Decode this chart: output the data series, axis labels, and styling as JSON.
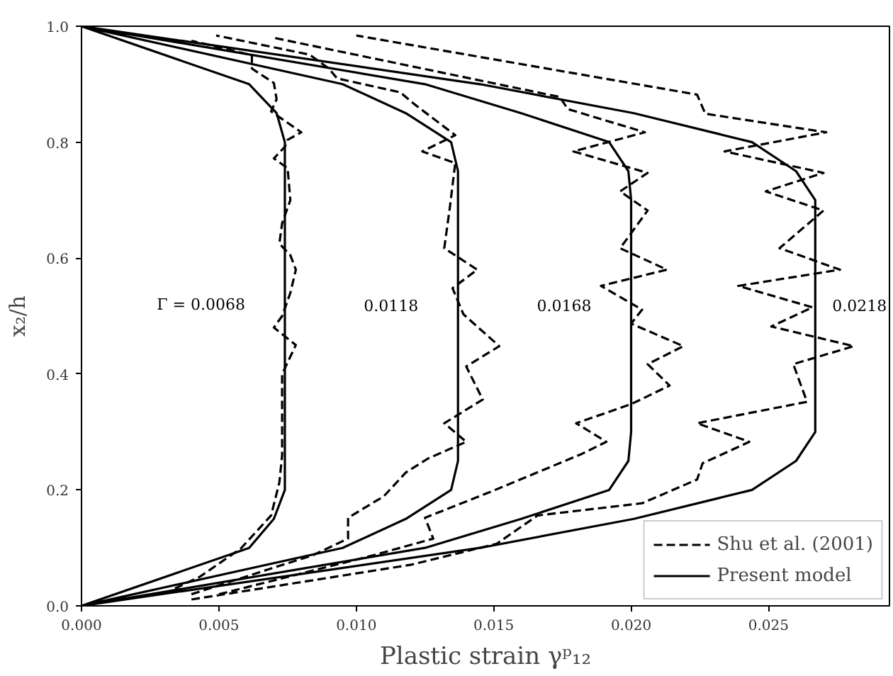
{
  "chart_data": {
    "type": "line",
    "xlabel": "Plastic strain γᵖ₁₂",
    "ylabel": "x₂/h",
    "xlim": [
      0,
      0.0294
    ],
    "ylim": [
      0,
      1.0
    ],
    "xticks": [
      {
        "value": 0,
        "label": "0.000"
      },
      {
        "value": 0.005,
        "label": "0.005"
      },
      {
        "value": 0.01,
        "label": "0.010"
      },
      {
        "value": 0.015,
        "label": "0.015"
      },
      {
        "value": 0.02,
        "label": "0.020"
      },
      {
        "value": 0.025,
        "label": "0.025"
      }
    ],
    "yticks": [
      {
        "value": 0,
        "label": "0.0"
      },
      {
        "value": 0.2,
        "label": "0.2"
      },
      {
        "value": 0.4,
        "label": "0.4"
      },
      {
        "value": 0.6,
        "label": "0.6"
      },
      {
        "value": 0.8,
        "label": "0.8"
      },
      {
        "value": 1.0,
        "label": "1.0"
      }
    ],
    "legend": "bottom right",
    "annotations": [
      "Γ = 0.0068",
      "0.0118",
      "0.0168",
      "0.0218"
    ],
    "series": [
      {
        "name": "Shu et al. (2001)",
        "color": "#000000",
        "line_style": "dashed",
        "x": [
          0.0034,
          0.0043,
          0.0058,
          0.0069,
          0.0072,
          0.0073,
          0.0073,
          0.0078,
          0.007,
          0.0073,
          0.0076,
          0.0078,
          0.0076,
          0.0072,
          0.0073,
          0.0076,
          0.0075,
          0.007,
          0.0074,
          0.0075,
          0.008,
          0.0069,
          0.0071,
          0.007,
          0.0062,
          0.0062,
          0.004,
          null,
          0.004,
          0.0068,
          0.0084,
          0.0097,
          0.0097,
          0.011,
          0.0118,
          0.0126,
          0.014,
          0.0132,
          0.0146,
          0.014,
          0.0152,
          0.0139,
          0.0135,
          0.0144,
          0.0132,
          0.0134,
          0.0136,
          0.0124,
          0.0136,
          0.0121,
          0.0116,
          0.0093,
          0.009,
          0.0083,
          0.0049,
          null,
          0.005,
          0.0106,
          0.0128,
          0.0126,
          0.0125,
          0.0149,
          0.0182,
          0.0191,
          0.018,
          0.02,
          0.0214,
          0.0206,
          0.0219,
          0.02,
          0.0204,
          0.0189,
          0.0213,
          0.0196,
          0.0206,
          0.0196,
          0.0206,
          0.0179,
          0.0205,
          0.0177,
          0.0174,
          0.007,
          null,
          0.004,
          0.012,
          0.0151,
          0.0166,
          0.0204,
          0.0224,
          0.0226,
          0.0243,
          0.0224,
          0.0264,
          0.0259,
          0.0281,
          0.0251,
          0.0266,
          0.0239,
          0.0276,
          0.0254,
          0.027,
          0.0249,
          0.027,
          0.0234,
          0.0271,
          0.0227,
          0.0224,
          0.01
        ],
        "values": [
          0.03,
          0.05,
          0.099,
          0.156,
          0.213,
          0.26,
          0.4,
          0.45,
          0.48,
          0.5,
          0.54,
          0.58,
          0.605,
          0.625,
          0.66,
          0.7,
          0.755,
          0.772,
          0.792,
          0.804,
          0.817,
          0.853,
          0.874,
          0.902,
          0.927,
          0.95,
          0.975,
          null,
          0.02,
          0.063,
          0.087,
          0.116,
          0.152,
          0.189,
          0.23,
          0.254,
          0.283,
          0.315,
          0.356,
          0.413,
          0.448,
          0.503,
          0.548,
          0.58,
          0.617,
          0.686,
          0.764,
          0.784,
          0.812,
          0.866,
          0.886,
          0.91,
          0.927,
          0.951,
          0.984,
          null,
          0.02,
          0.087,
          0.116,
          0.14,
          0.152,
          0.197,
          0.262,
          0.283,
          0.315,
          0.348,
          0.38,
          0.417,
          0.448,
          0.487,
          0.511,
          0.552,
          0.58,
          0.617,
          0.682,
          0.715,
          0.747,
          0.784,
          0.817,
          0.857,
          0.878,
          0.98,
          null,
          0.011,
          0.071,
          0.107,
          0.156,
          0.177,
          0.218,
          0.246,
          0.283,
          0.315,
          0.352,
          0.417,
          0.448,
          0.482,
          0.515,
          0.552,
          0.58,
          0.617,
          0.682,
          0.715,
          0.747,
          0.784,
          0.817,
          0.849,
          0.882,
          0.984
        ]
      },
      {
        "name": "Present model",
        "color": "#000000",
        "line_style": "solid",
        "x": [
          0,
          0.0061,
          0.007,
          0.0074,
          0.0074,
          0.0071,
          0.0061,
          0,
          null,
          0,
          0.0095,
          0.0118,
          0.01345,
          0.0137,
          0.0137,
          0.01345,
          0.0118,
          0.0095,
          0,
          null,
          0,
          0.0125,
          0.016,
          0.0192,
          0.0199,
          0.02,
          0.02,
          0.0199,
          0.0192,
          0.016,
          0.0125,
          0,
          null,
          0,
          0.0145,
          0.0201,
          0.0244,
          0.026,
          0.0267,
          0.0267,
          0.026,
          0.0244,
          0.0201,
          0.0145,
          0
        ],
        "values": [
          0,
          0.1,
          0.15,
          0.2,
          0.8,
          0.85,
          0.9,
          1.0,
          null,
          0,
          0.1,
          0.15,
          0.2,
          0.25,
          0.75,
          0.8,
          0.85,
          0.9,
          1.0,
          null,
          0,
          0.1,
          0.15,
          0.2,
          0.25,
          0.3,
          0.7,
          0.75,
          0.8,
          0.85,
          0.9,
          1.0,
          null,
          0,
          0.1,
          0.15,
          0.2,
          0.25,
          0.3,
          0.7,
          0.75,
          0.8,
          0.85,
          0.9,
          1.0
        ]
      }
    ]
  }
}
